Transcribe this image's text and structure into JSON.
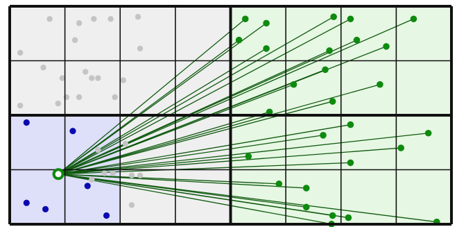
{
  "diagram": {
    "grid": {
      "cols": 8,
      "rows": 4,
      "thick_col_lines": [
        0,
        4,
        8
      ],
      "thick_row_lines": [
        0,
        2,
        4
      ]
    },
    "regions": [
      {
        "name": "gray-region",
        "col0": 0,
        "row0": 0,
        "col1": 4,
        "row1": 4,
        "fill": "#efefef"
      },
      {
        "name": "green-region",
        "col0": 4,
        "row0": 0,
        "col1": 8,
        "row1": 4,
        "fill": "#e6f7e3"
      },
      {
        "name": "blue-region",
        "col0": 0,
        "row0": 2,
        "col1": 2,
        "row1": 4,
        "fill": "#dedff8"
      }
    ],
    "colors": {
      "grid": "#111111",
      "gray_point": "#c4c4c4",
      "blue_point": "#0a0ab0",
      "green_point": "#0e8a0e",
      "ray": "#0f5a0f",
      "query": "#0e8a0e"
    },
    "gray_points": [
      [
        0.19,
        0.06
      ],
      [
        0.33,
        0.08
      ],
      [
        0.31,
        0.16
      ],
      [
        0.4,
        0.06
      ],
      [
        0.48,
        0.06
      ],
      [
        0.61,
        0.05
      ],
      [
        0.05,
        0.22
      ],
      [
        0.16,
        0.29
      ],
      [
        0.25,
        0.34
      ],
      [
        0.27,
        0.43
      ],
      [
        0.36,
        0.31
      ],
      [
        0.42,
        0.34
      ],
      [
        0.54,
        0.35
      ],
      [
        0.5,
        0.43
      ],
      [
        0.05,
        0.47
      ],
      [
        0.23,
        0.46
      ],
      [
        0.39,
        0.34
      ],
      [
        0.33,
        0.43
      ],
      [
        0.39,
        0.82
      ],
      [
        0.45,
        0.79
      ],
      [
        0.49,
        0.79
      ],
      [
        0.58,
        0.8
      ],
      [
        0.62,
        0.8
      ],
      [
        0.58,
        0.94
      ],
      [
        0.42,
        0.68
      ],
      [
        0.55,
        0.65
      ],
      [
        0.62,
        0.2
      ]
    ],
    "blue_points": [
      [
        0.08,
        0.55
      ],
      [
        0.3,
        0.59
      ],
      [
        0.37,
        0.85
      ],
      [
        0.08,
        0.93
      ],
      [
        0.17,
        0.96
      ],
      [
        0.46,
        0.99
      ]
    ],
    "green_points": [
      [
        2.24,
        0.06
      ],
      [
        2.44,
        0.08
      ],
      [
        3.08,
        0.05
      ],
      [
        3.24,
        0.06
      ],
      [
        3.84,
        0.06
      ],
      [
        2.18,
        0.16
      ],
      [
        2.44,
        0.2
      ],
      [
        3.04,
        0.21
      ],
      [
        3.3,
        0.16
      ],
      [
        3.58,
        0.19
      ],
      [
        3.0,
        0.3
      ],
      [
        2.7,
        0.37
      ],
      [
        3.52,
        0.37
      ],
      [
        3.07,
        0.45
      ],
      [
        2.47,
        0.5
      ],
      [
        3.24,
        0.56
      ],
      [
        2.98,
        0.61
      ],
      [
        3.98,
        0.6
      ],
      [
        3.72,
        0.67
      ],
      [
        2.27,
        0.71
      ],
      [
        3.24,
        0.74
      ],
      [
        2.56,
        0.84
      ],
      [
        2.82,
        0.86
      ],
      [
        2.82,
        0.95
      ],
      [
        3.07,
        0.99
      ],
      [
        3.22,
        1.0
      ],
      [
        3.06,
        1.03
      ],
      [
        4.06,
        1.02
      ]
    ],
    "query": [
      0.88,
      0.77
    ]
  }
}
